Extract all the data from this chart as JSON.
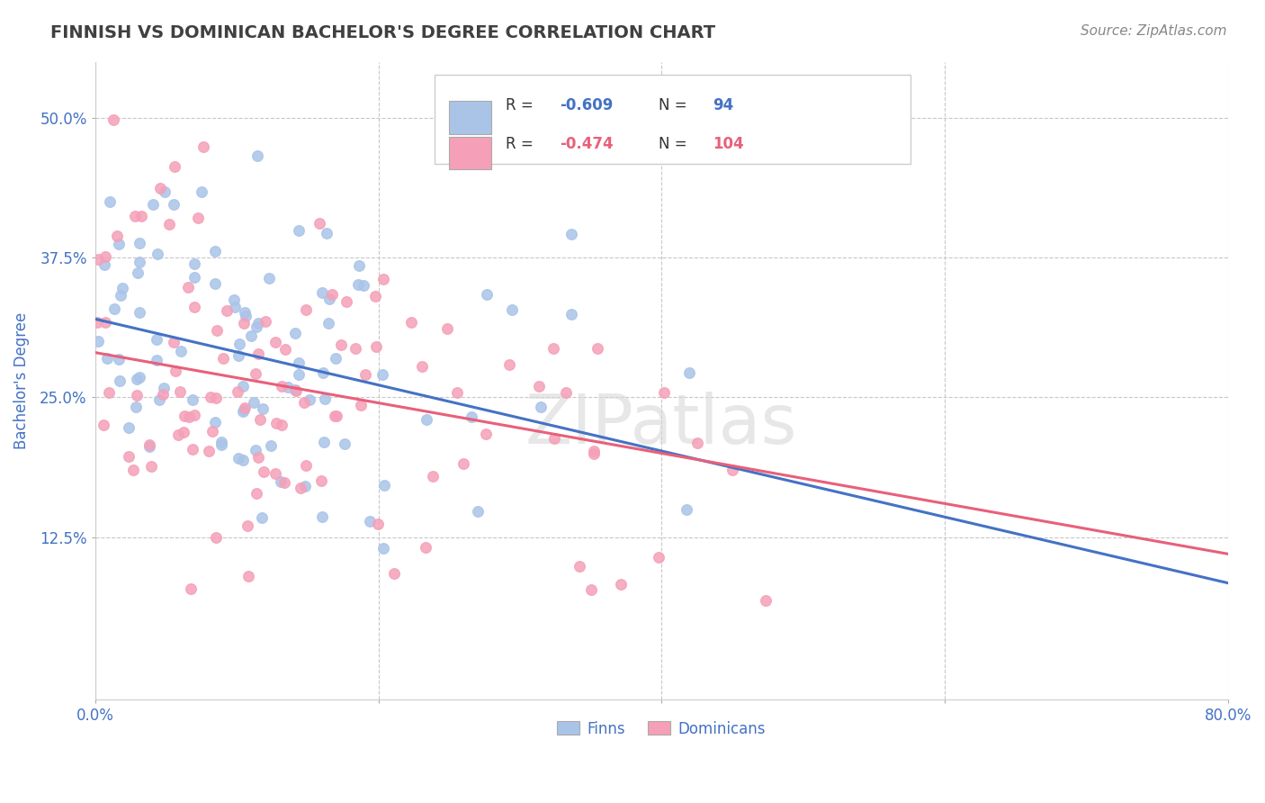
{
  "title": "FINNISH VS DOMINICAN BACHELOR'S DEGREE CORRELATION CHART",
  "source": "Source: ZipAtlas.com",
  "ylabel": "Bachelor's Degree",
  "xlim": [
    0.0,
    0.8
  ],
  "ylim": [
    -0.02,
    0.55
  ],
  "xticks": [
    0.0,
    0.2,
    0.4,
    0.6,
    0.8
  ],
  "xtick_labels": [
    "0.0%",
    "",
    "",
    "",
    "80.0%"
  ],
  "ytick_positions": [
    0.125,
    0.25,
    0.375,
    0.5
  ],
  "ytick_labels": [
    "12.5%",
    "25.0%",
    "37.5%",
    "50.0%"
  ],
  "finn_color": "#aac4e8",
  "dominican_color": "#f5a0b8",
  "finn_line_color": "#4472c4",
  "dominican_line_color": "#e8607a",
  "background_color": "#ffffff",
  "grid_color": "#c8c8c8",
  "axis_label_color": "#4472c4",
  "title_color": "#404040",
  "watermark": "ZIPatlas",
  "finn_regression": {
    "slope": -0.295,
    "intercept": 0.32
  },
  "dominican_regression": {
    "slope": -0.225,
    "intercept": 0.29
  }
}
